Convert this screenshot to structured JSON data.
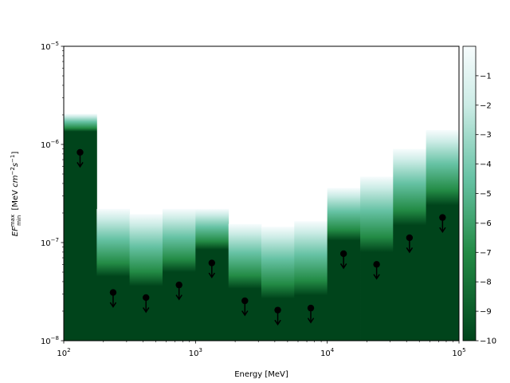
{
  "chart_data": {
    "type": "bar",
    "xlabel": "Energy [MeV]",
    "ylabel": "EF_min^max [MeV cm^-2 s^-1]",
    "x_scale": "log",
    "y_scale": "log",
    "xlim": [
      100,
      100000
    ],
    "ylim": [
      1e-08,
      1e-05
    ],
    "x_ticks": [
      {
        "value": 100,
        "base": "10",
        "exp": "2"
      },
      {
        "value": 1000,
        "base": "10",
        "exp": "3"
      },
      {
        "value": 10000,
        "base": "10",
        "exp": "4"
      },
      {
        "value": 100000,
        "base": "10",
        "exp": "5"
      }
    ],
    "y_ticks": [
      {
        "value": 1e-08,
        "base": "10",
        "exp": "−8"
      },
      {
        "value": 1e-07,
        "base": "10",
        "exp": "−7"
      },
      {
        "value": 1e-06,
        "base": "10",
        "exp": "−6"
      },
      {
        "value": 1e-05,
        "base": "10",
        "exp": "−5"
      }
    ],
    "colormap": "BuGn_r",
    "colorbar": {
      "range": [
        -10,
        0
      ],
      "ticks": [
        "−1",
        "−2",
        "−3",
        "−4",
        "−5",
        "−6",
        "−7",
        "−8",
        "−9",
        "−10"
      ]
    },
    "bins": [
      {
        "e_min": 100,
        "e_max": 178,
        "top": 2.05e-06,
        "solid_top": 1.35e-06
      },
      {
        "e_min": 178,
        "e_max": 316,
        "top": 2.2e-07,
        "solid_top": 4.5e-08
      },
      {
        "e_min": 316,
        "e_max": 562,
        "top": 1.95e-07,
        "solid_top": 3.6e-08
      },
      {
        "e_min": 562,
        "e_max": 1000,
        "top": 2.2e-07,
        "solid_top": 5e-08
      },
      {
        "e_min": 1000,
        "e_max": 1780,
        "top": 2.2e-07,
        "solid_top": 8.5e-08
      },
      {
        "e_min": 1780,
        "e_max": 3160,
        "top": 1.55e-07,
        "solid_top": 3.4e-08
      },
      {
        "e_min": 3160,
        "e_max": 5620,
        "top": 1.45e-07,
        "solid_top": 2.7e-08
      },
      {
        "e_min": 5620,
        "e_max": 10000,
        "top": 1.65e-07,
        "solid_top": 2.9e-08
      },
      {
        "e_min": 10000,
        "e_max": 17800,
        "top": 3.6e-07,
        "solid_top": 1.05e-07
      },
      {
        "e_min": 17800,
        "e_max": 31600,
        "top": 4.7e-07,
        "solid_top": 8e-08
      },
      {
        "e_min": 31600,
        "e_max": 56200,
        "top": 9e-07,
        "solid_top": 1.5e-07
      },
      {
        "e_min": 56200,
        "e_max": 100000,
        "top": 1.4e-06,
        "solid_top": 2.4e-07
      }
    ],
    "upper_limits": [
      {
        "x": 133,
        "y": 8.3e-07
      },
      {
        "x": 237,
        "y": 3.1e-08
      },
      {
        "x": 421,
        "y": 2.75e-08
      },
      {
        "x": 750,
        "y": 3.7e-08
      },
      {
        "x": 1330,
        "y": 6.2e-08
      },
      {
        "x": 2370,
        "y": 2.55e-08
      },
      {
        "x": 4210,
        "y": 2.05e-08
      },
      {
        "x": 7500,
        "y": 2.15e-08
      },
      {
        "x": 13300,
        "y": 7.7e-08
      },
      {
        "x": 23700,
        "y": 6e-08
      },
      {
        "x": 42100,
        "y": 1.12e-07
      },
      {
        "x": 75000,
        "y": 1.8e-07
      }
    ],
    "colors": {
      "dark": "#00441b",
      "mid": "#238b45",
      "light": "#66c2a4",
      "pale": "#ccece6",
      "white": "#f7fcfd",
      "marker": "#000000"
    }
  }
}
